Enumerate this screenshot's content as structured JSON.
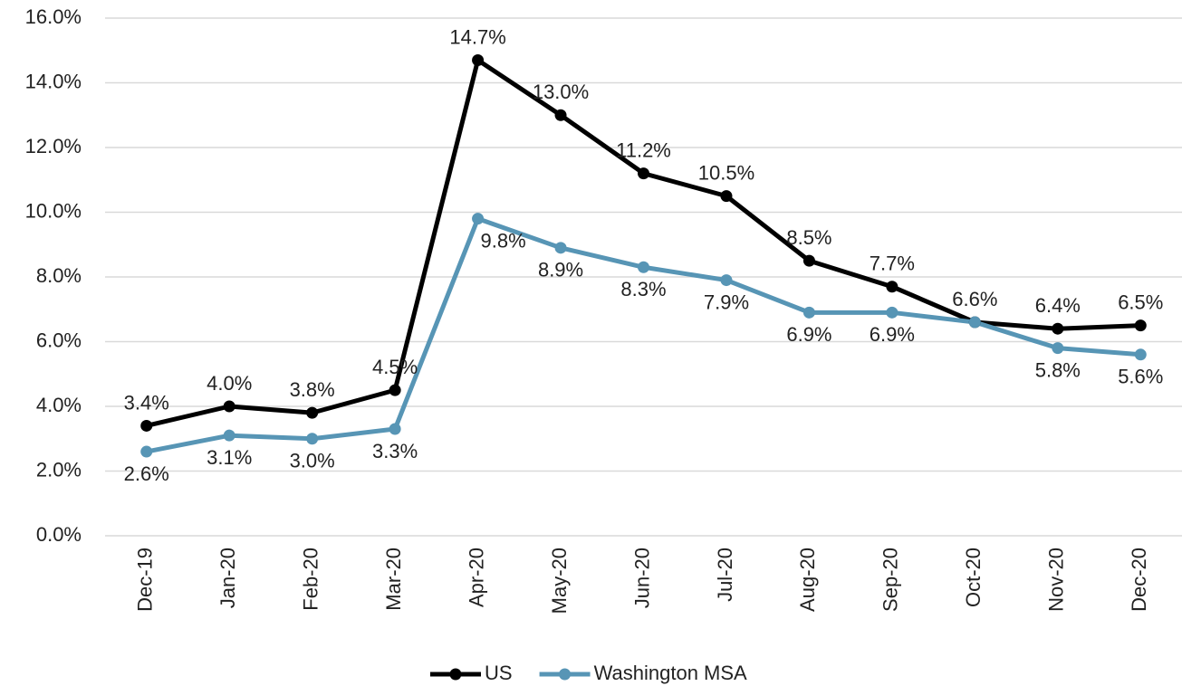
{
  "chart_data": {
    "type": "line",
    "categories": [
      "Dec-19",
      "Jan-20",
      "Feb-20",
      "Mar-20",
      "Apr-20",
      "May-20",
      "Jun-20",
      "Jul-20",
      "Aug-20",
      "Sep-20",
      "Oct-20",
      "Nov-20",
      "Dec-20"
    ],
    "series": [
      {
        "name": "US",
        "color": "#000000",
        "values": [
          3.4,
          4.0,
          3.8,
          4.5,
          14.7,
          13.0,
          11.2,
          10.5,
          8.5,
          7.7,
          6.6,
          6.4,
          6.5
        ],
        "value_labels": [
          "3.4%",
          "4.0%",
          "3.8%",
          "4.5%",
          "14.7%",
          "13.0%",
          "11.2%",
          "10.5%",
          "8.5%",
          "7.7%",
          "6.6%",
          "6.4%",
          "6.5%"
        ]
      },
      {
        "name": "Washington MSA",
        "color": "#5795b5",
        "values": [
          2.6,
          3.1,
          3.0,
          3.3,
          9.8,
          8.9,
          8.3,
          7.9,
          6.9,
          6.9,
          6.6,
          5.8,
          5.6
        ],
        "value_labels": [
          "2.6%",
          "3.1%",
          "3.0%",
          "3.3%",
          "9.8%",
          "8.9%",
          "8.3%",
          "7.9%",
          "6.9%",
          "6.9%",
          null,
          "5.8%",
          "5.6%"
        ]
      }
    ],
    "ylim": [
      0,
      16
    ],
    "yticks": [
      {
        "value": 0,
        "label": "0.0%"
      },
      {
        "value": 2,
        "label": "2.0%"
      },
      {
        "value": 4,
        "label": "4.0%"
      },
      {
        "value": 6,
        "label": "6.0%"
      },
      {
        "value": 8,
        "label": "8.0%"
      },
      {
        "value": 10,
        "label": "10.0%"
      },
      {
        "value": 12,
        "label": "12.0%"
      },
      {
        "value": 14,
        "label": "14.0%"
      },
      {
        "value": 16,
        "label": "16.0%"
      }
    ],
    "grid": true,
    "legend": "bottom"
  }
}
